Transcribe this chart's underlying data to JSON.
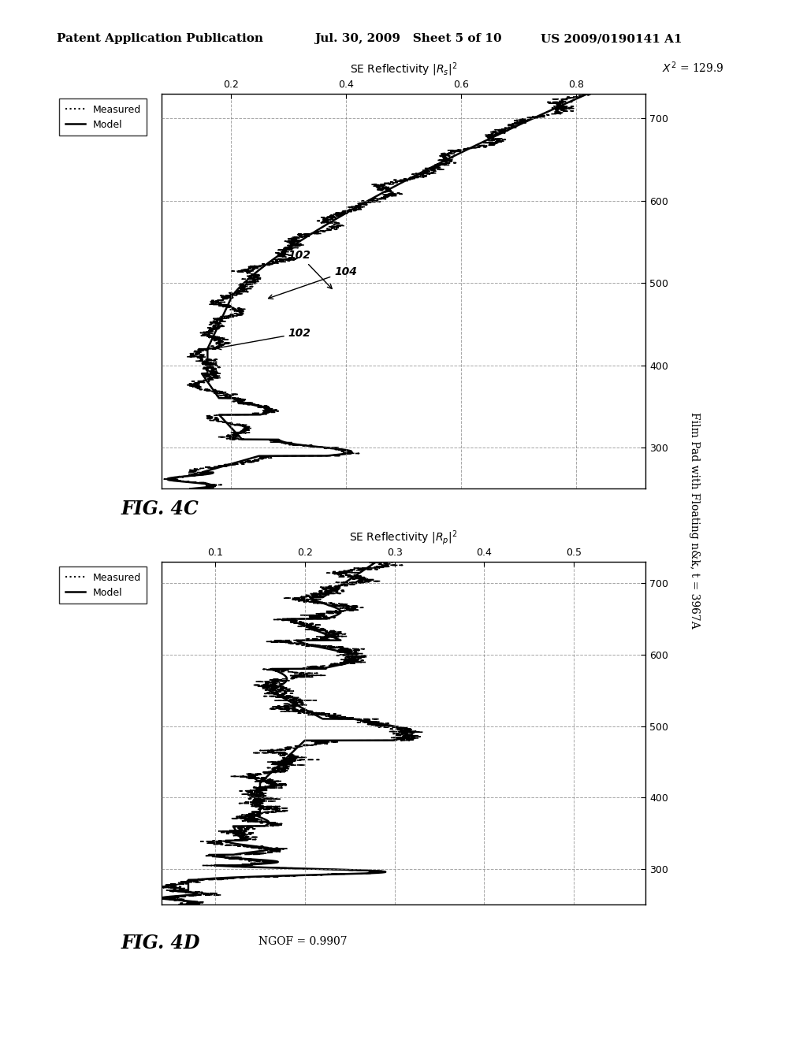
{
  "header_left": "Patent Application Publication",
  "header_mid": "Jul. 30, 2009   Sheet 5 of 10",
  "header_right": "US 2009/0190141 A1",
  "fig4c_xlabel": "SE Reflectivity |R_s|^2",
  "fig4d_xlabel": "SE Reflectivity |R_p|^2",
  "fig4c_xticks": [
    0.2,
    0.4,
    0.6,
    0.8
  ],
  "fig4d_xticks": [
    0.1,
    0.2,
    0.3,
    0.4,
    0.5
  ],
  "yticks": [
    300,
    400,
    500,
    600,
    700
  ],
  "yrange": [
    250,
    730
  ],
  "fig4c_xrange": [
    0.08,
    0.92
  ],
  "fig4d_xrange": [
    0.04,
    0.58
  ],
  "fig4c_label": "FIG. 4C",
  "fig4d_label": "FIG. 4D",
  "annotation_102a": "102",
  "annotation_104": "104",
  "annotation_102b": "102",
  "ngof_text": "NGOF = 0.9907",
  "chi2_text": "X^2 = 129.9",
  "film_pad_text": "Film Pad with Floating n&k, t = 3967A",
  "legend_measured": "Measured",
  "legend_model": "Model"
}
